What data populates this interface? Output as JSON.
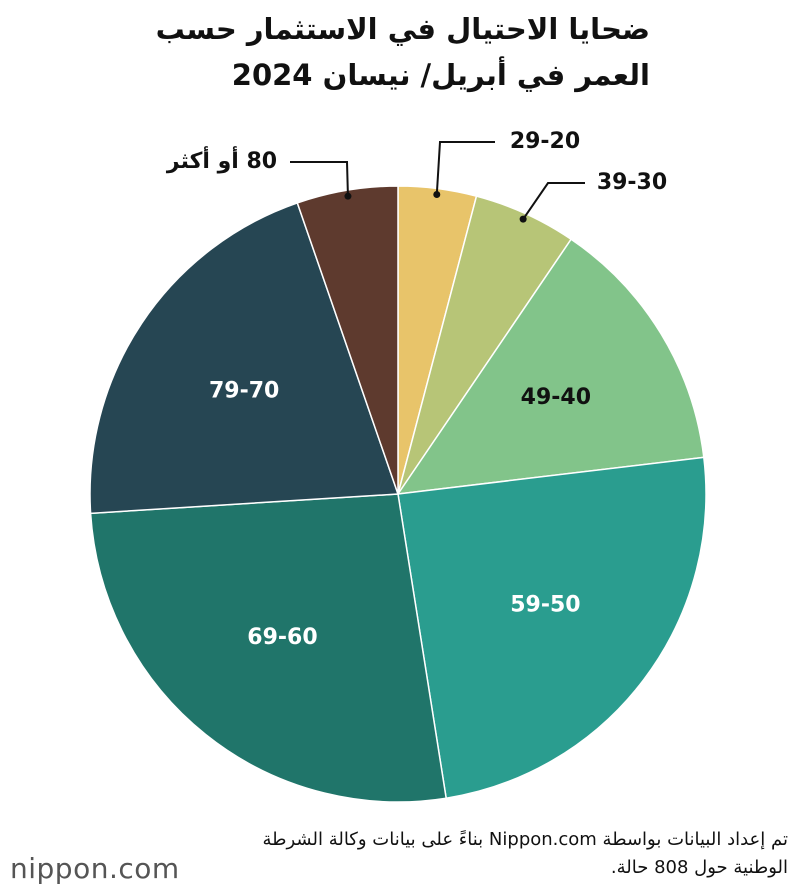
{
  "chart_data": {
    "type": "pie",
    "title": "ضحايا الاحتيال في الاستثمار حسب العمر في أبريل/ نيسان 2024",
    "categories": [
      "29-20",
      "39-30",
      "49-40",
      "59-50",
      "69-60",
      "79-70",
      "80 أو أكثر"
    ],
    "values": [
      4.1,
      5.4,
      13.6,
      24.4,
      26.5,
      20.7,
      5.3
    ],
    "colors": [
      "#e8c46a",
      "#b7c577",
      "#82c48a",
      "#2a9d8f",
      "#20756a",
      "#264653",
      "#5e3a2e"
    ],
    "source": "تم إعداد البيانات بواسطة Nippon.com بناءً على بيانات وكالة الشرطة الوطنية حول 808 حالة.",
    "logo": "nippon.com"
  }
}
